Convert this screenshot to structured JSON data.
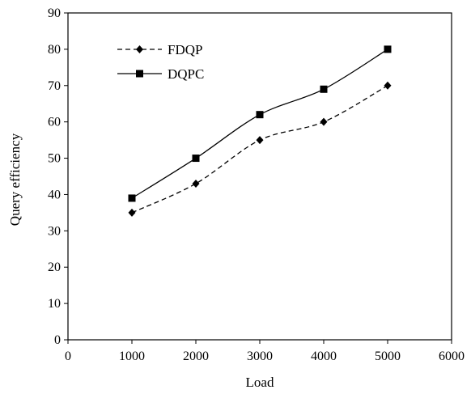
{
  "chart_data": {
    "type": "line",
    "title": "",
    "xlabel": "Load",
    "ylabel": "Query efficiency",
    "xlim": [
      0,
      6000
    ],
    "ylim": [
      0,
      90
    ],
    "xticks": [
      0,
      1000,
      2000,
      3000,
      4000,
      5000,
      6000
    ],
    "yticks": [
      0,
      10,
      20,
      30,
      40,
      50,
      60,
      70,
      80,
      90
    ],
    "grid": false,
    "legend_position": "top-left",
    "series": [
      {
        "name": "FDQP",
        "line_style": "dashed",
        "marker": "diamond",
        "color": "#000000",
        "x": [
          1000,
          2000,
          3000,
          4000,
          5000
        ],
        "y": [
          35,
          43,
          55,
          60,
          70
        ]
      },
      {
        "name": "DQPC",
        "line_style": "solid",
        "marker": "square",
        "color": "#000000",
        "x": [
          1000,
          2000,
          3000,
          4000,
          5000
        ],
        "y": [
          39,
          50,
          62,
          69,
          80
        ]
      }
    ]
  }
}
